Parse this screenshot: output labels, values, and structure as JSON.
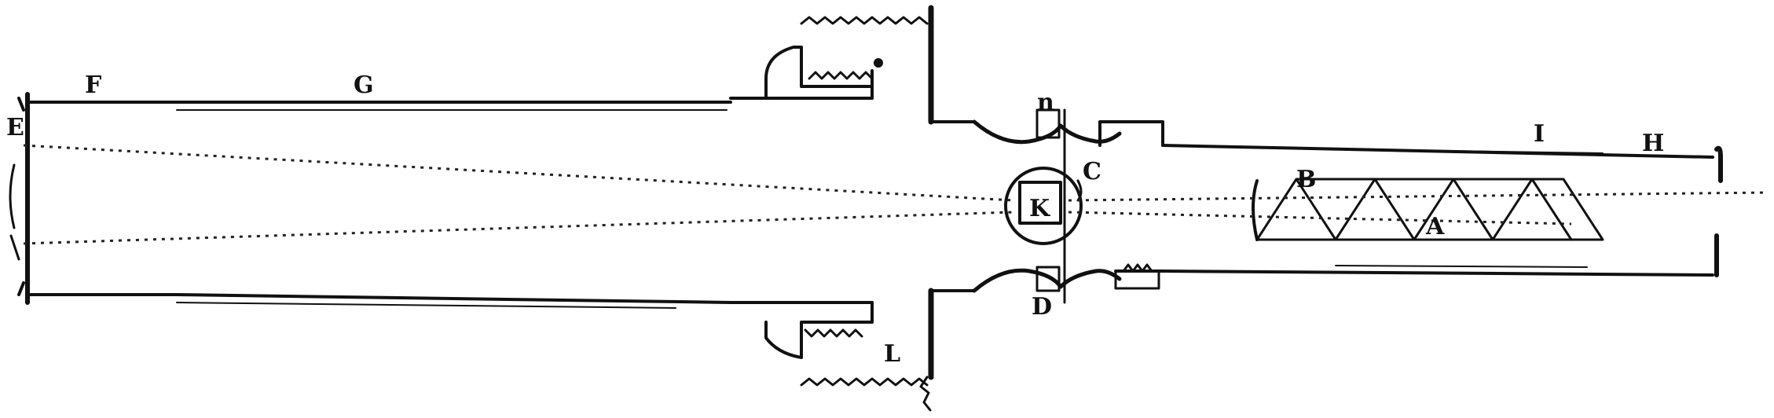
{
  "labels": {
    "E": "E",
    "F": "F",
    "G": "G",
    "H": "H",
    "I_top": "I",
    "A": "A",
    "B": "B",
    "C": "C",
    "D": "D",
    "K": "K",
    "L": "L",
    "n": "n"
  },
  "colors": {
    "ink": "#111111",
    "background": "#ffffff"
  }
}
